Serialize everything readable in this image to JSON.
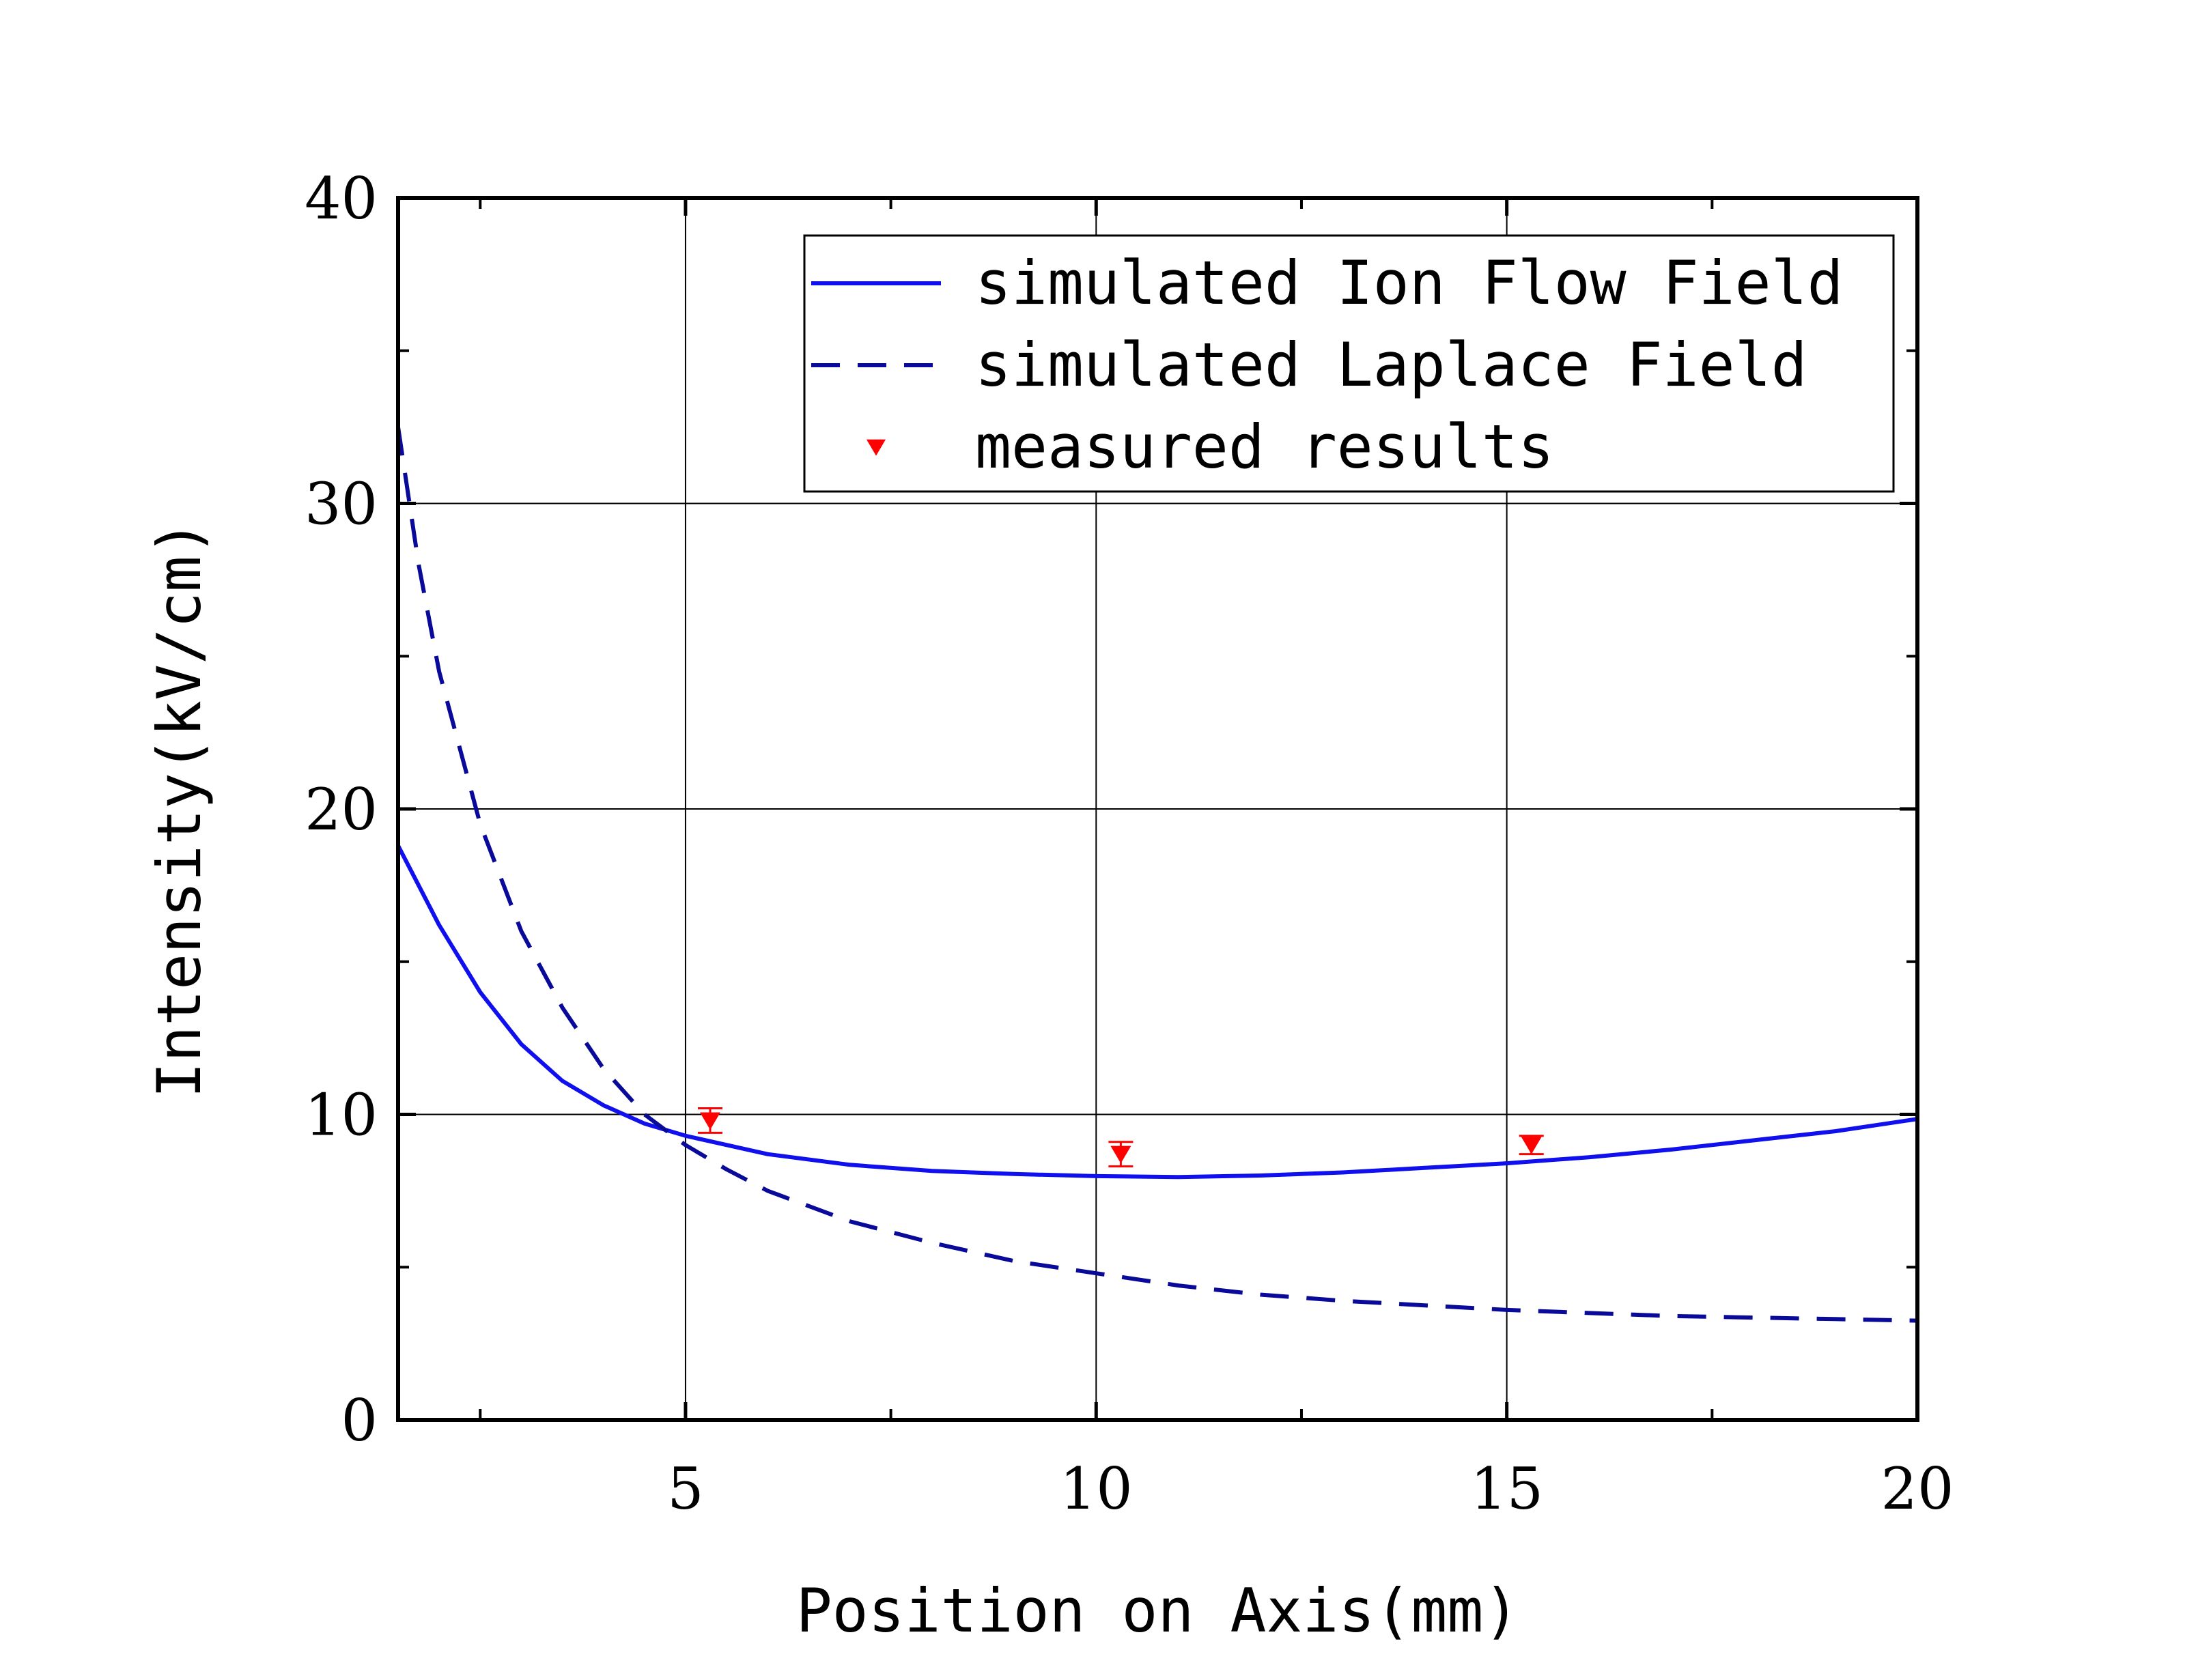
{
  "chart_data": {
    "type": "line",
    "title": "",
    "xlabel": "Position on Axis(mm)",
    "ylabel": "Intensity(kV/cm)",
    "xlim": [
      1.5,
      20
    ],
    "ylim": [
      0,
      40
    ],
    "xticks": [
      "5",
      "10",
      "15",
      "20"
    ],
    "yticks": [
      "0",
      "10",
      "20",
      "30",
      "40"
    ],
    "grid": true,
    "legend_position": "top-right",
    "series": [
      {
        "name": "simulated Ion Flow Field",
        "style": "solid",
        "color": "#1010ee",
        "x": [
          1.5,
          2,
          2.5,
          3,
          3.5,
          4,
          4.5,
          5,
          6,
          7,
          8,
          9,
          10,
          11,
          12,
          13,
          14,
          15,
          16,
          17,
          18,
          19,
          20
        ],
        "y": [
          18.8,
          16.2,
          14.0,
          12.3,
          11.1,
          10.3,
          9.7,
          9.3,
          8.7,
          8.35,
          8.15,
          8.05,
          7.98,
          7.95,
          8.0,
          8.1,
          8.25,
          8.4,
          8.6,
          8.85,
          9.15,
          9.45,
          9.85
        ]
      },
      {
        "name": "simulated Laplace Field",
        "style": "dashed",
        "color": "#0a0a9a",
        "x": [
          1.5,
          1.75,
          2,
          2.5,
          3,
          3.5,
          4,
          4.5,
          5,
          5.5,
          6,
          7,
          8,
          9,
          10,
          11,
          12,
          13,
          14,
          15,
          16,
          17,
          18,
          19,
          20
        ],
        "y": [
          32.5,
          28.0,
          24.5,
          19.5,
          16.0,
          13.5,
          11.5,
          10.0,
          9.0,
          8.2,
          7.5,
          6.5,
          5.8,
          5.2,
          4.8,
          4.4,
          4.1,
          3.9,
          3.75,
          3.6,
          3.5,
          3.4,
          3.35,
          3.3,
          3.25
        ]
      },
      {
        "name": "measured results",
        "style": "markers",
        "marker": "triangle-down",
        "color": "#ff0000",
        "x": [
          5.3,
          10.3,
          15.3
        ],
        "y": [
          9.8,
          8.7,
          9.0
        ],
        "yerr": [
          0.4,
          0.4,
          0.3
        ]
      }
    ]
  }
}
